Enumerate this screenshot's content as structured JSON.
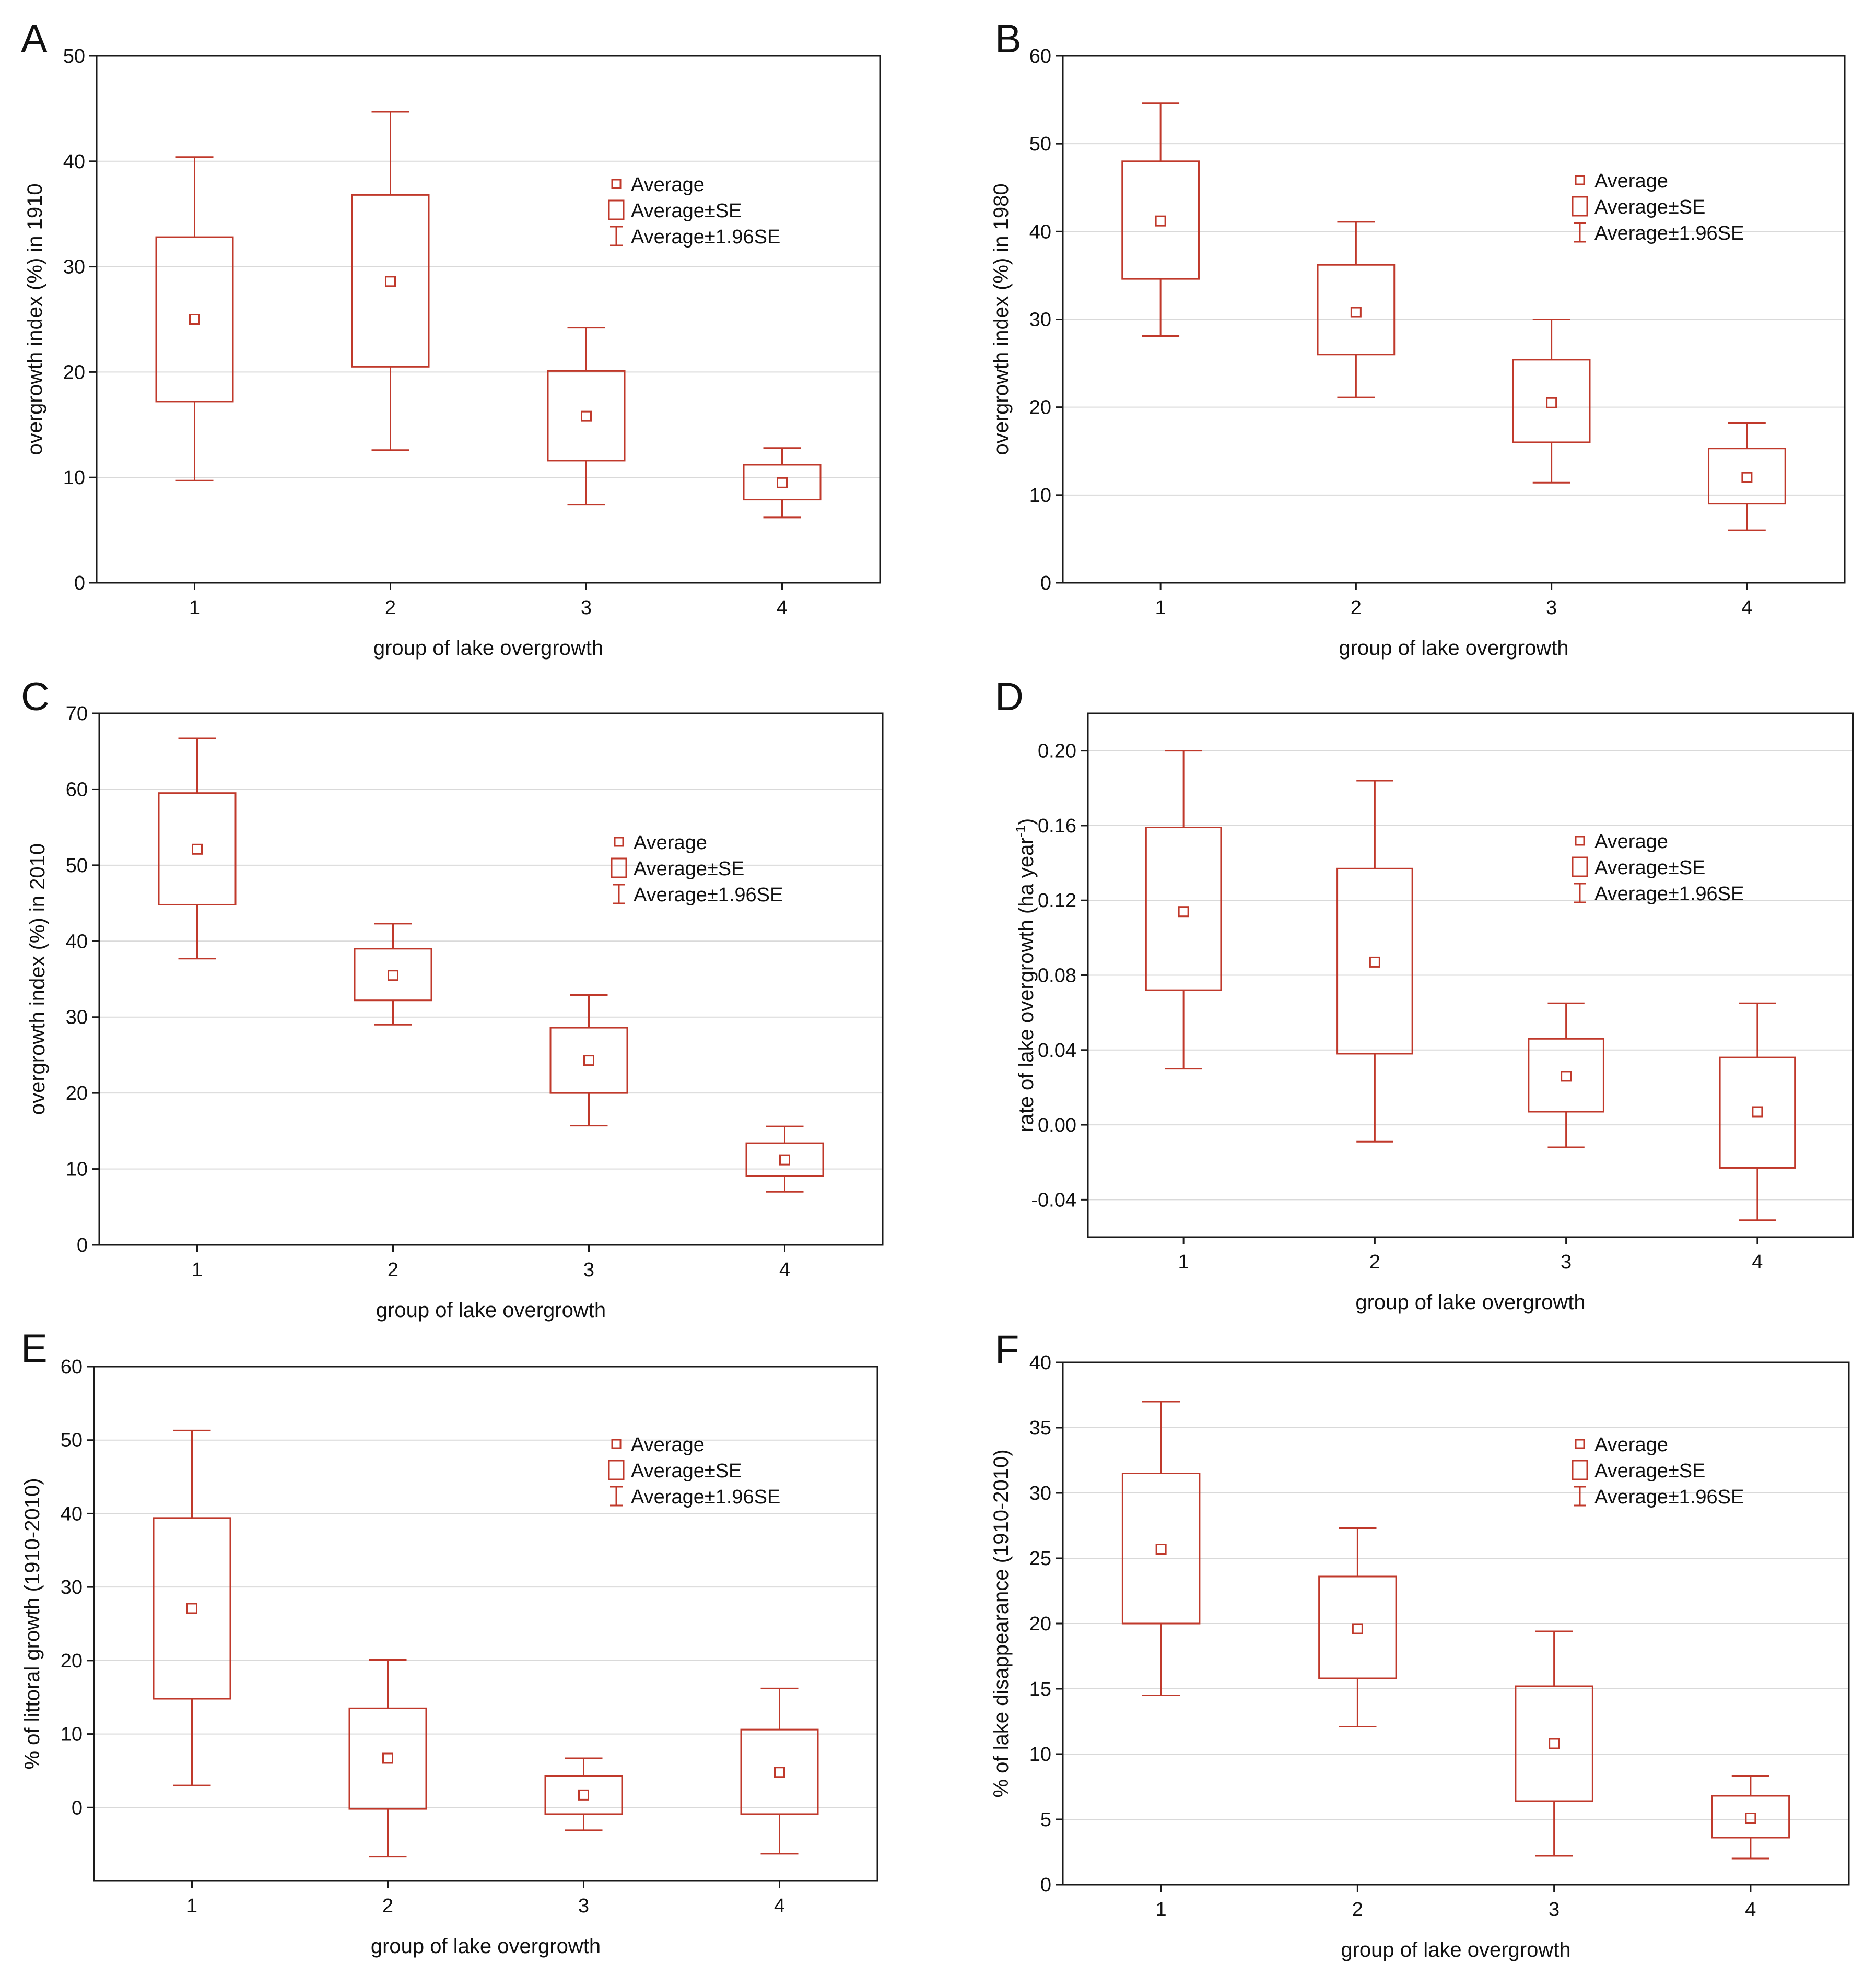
{
  "chart_data": [
    {
      "type": "box",
      "panel_letter": "A",
      "ylabel": "overgrowth index (%) in 1910",
      "xlabel": "group of lake overgrowth",
      "categories": [
        "1",
        "2",
        "3",
        "4"
      ],
      "ylim": [
        0,
        50
      ],
      "yticks": [
        "0",
        "10",
        "20",
        "30",
        "40",
        "50"
      ],
      "mean": [
        25,
        28.6,
        15.8,
        9.5
      ],
      "se_low": [
        17.2,
        20.5,
        11.6,
        7.9
      ],
      "se_high": [
        32.8,
        36.8,
        20.1,
        11.2
      ],
      "ci_low": [
        9.7,
        12.6,
        7.4,
        6.2
      ],
      "ci_high": [
        40.4,
        44.7,
        24.2,
        12.8
      ],
      "legend": [
        "Average",
        "Average±SE",
        "Average±1.96SE"
      ]
    },
    {
      "type": "box",
      "panel_letter": "B",
      "ylabel": "overgrowth index (%) in 1980",
      "xlabel": "group of lake overgrowth",
      "categories": [
        "1",
        "2",
        "3",
        "4"
      ],
      "ylim": [
        0,
        60
      ],
      "yticks": [
        "0",
        "10",
        "20",
        "30",
        "40",
        "50",
        "60"
      ],
      "mean": [
        41.2,
        30.8,
        20.5,
        12
      ],
      "se_low": [
        34.6,
        26,
        16,
        9
      ],
      "se_high": [
        48,
        36.2,
        25.4,
        15.3
      ],
      "ci_low": [
        28.1,
        21.1,
        11.4,
        6
      ],
      "ci_high": [
        54.6,
        41.1,
        30,
        18.2
      ],
      "legend": [
        "Average",
        "Average±SE",
        "Average±1.96SE"
      ]
    },
    {
      "type": "box",
      "panel_letter": "C",
      "ylabel": "overgrowth index (%) in 2010",
      "xlabel": "group of lake overgrowth",
      "categories": [
        "1",
        "2",
        "3",
        "4"
      ],
      "ylim": [
        0,
        70
      ],
      "yticks": [
        "0",
        "10",
        "20",
        "30",
        "40",
        "50",
        "60",
        "70"
      ],
      "mean": [
        52.1,
        35.5,
        24.3,
        11.2
      ],
      "se_low": [
        44.8,
        32.2,
        20,
        9.1
      ],
      "se_high": [
        59.5,
        39,
        28.6,
        13.4
      ],
      "ci_low": [
        37.7,
        29,
        15.7,
        7
      ],
      "ci_high": [
        66.7,
        42.3,
        32.9,
        15.6
      ],
      "legend": [
        "Average",
        "Average±SE",
        "Average±1.96SE"
      ]
    },
    {
      "type": "box",
      "panel_letter": "D",
      "ylabel": "rate of lake overgrowth  (ha year",
      "ylabel_sup": "-1",
      "ylabel_tail": ")",
      "xlabel": "group of lake overgrowth",
      "categories": [
        "1",
        "2",
        "3",
        "4"
      ],
      "ylim": [
        -0.06,
        0.22
      ],
      "yticks": [
        "-0.04",
        "0.00",
        "0.04",
        "0.08",
        "0.12",
        "0.16",
        "0.20"
      ],
      "mean": [
        0.114,
        0.087,
        0.026,
        0.007
      ],
      "se_low": [
        0.072,
        0.038,
        0.007,
        -0.023
      ],
      "se_high": [
        0.159,
        0.137,
        0.046,
        0.036
      ],
      "ci_low": [
        0.03,
        -0.009,
        -0.012,
        -0.051
      ],
      "ci_high": [
        0.2,
        0.184,
        0.065,
        0.065
      ],
      "legend": [
        "Average",
        "Average±SE",
        "Average±1.96SE"
      ]
    },
    {
      "type": "box",
      "panel_letter": "E",
      "ylabel": "% of littoral growth (1910-2010)",
      "xlabel": "group of lake overgrowth",
      "categories": [
        "1",
        "2",
        "3",
        "4"
      ],
      "ylim": [
        -10,
        60
      ],
      "yticks": [
        "0",
        "10",
        "20",
        "30",
        "40",
        "50",
        "60"
      ],
      "mean": [
        27.1,
        6.7,
        1.7,
        4.8
      ],
      "se_low": [
        14.8,
        -0.2,
        -0.9,
        -0.9
      ],
      "se_high": [
        39.4,
        13.5,
        4.3,
        10.6
      ],
      "ci_low": [
        3,
        -6.7,
        -3.1,
        -6.3
      ],
      "ci_high": [
        51.3,
        20.1,
        6.7,
        16.2
      ],
      "legend": [
        "Average",
        "Average±SE",
        "Average±1.96SE"
      ]
    },
    {
      "type": "box",
      "panel_letter": "F",
      "ylabel": "% of lake disappearance (1910-2010)",
      "xlabel": "group of lake overgrowth",
      "categories": [
        "1",
        "2",
        "3",
        "4"
      ],
      "ylim": [
        0,
        40
      ],
      "yticks": [
        "0",
        "5",
        "10",
        "15",
        "20",
        "25",
        "30",
        "35",
        "40"
      ],
      "mean": [
        25.7,
        19.6,
        10.8,
        5.1
      ],
      "se_low": [
        20,
        15.8,
        6.4,
        3.6
      ],
      "se_high": [
        31.5,
        23.6,
        15.2,
        6.8
      ],
      "ci_low": [
        14.5,
        12.1,
        2.2,
        2
      ],
      "ci_high": [
        37,
        27.3,
        19.4,
        8.3
      ],
      "legend": [
        "Average",
        "Average±SE",
        "Average±1.96SE"
      ]
    }
  ],
  "colors": {
    "series": "#c0392b",
    "frame": "#1a1a1a",
    "grid": "#d9d9d9",
    "text": "#111111"
  }
}
